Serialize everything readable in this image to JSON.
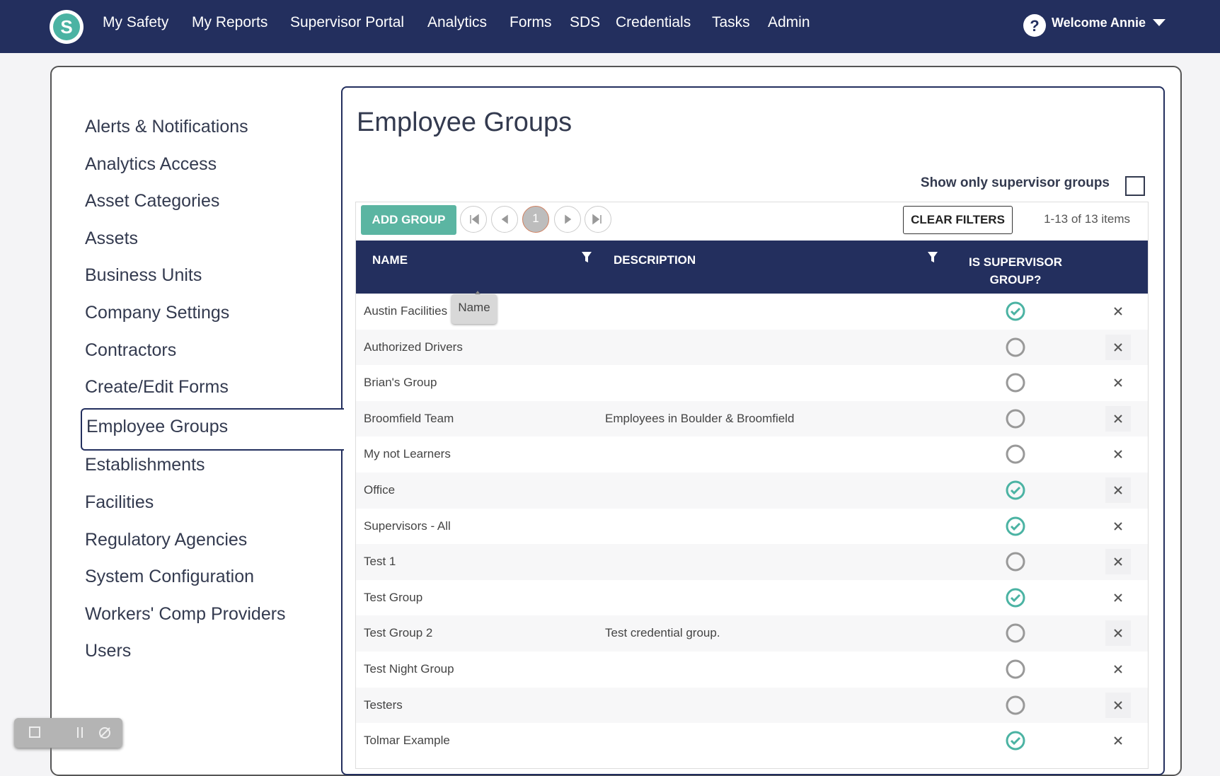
{
  "nav": {
    "logo": "S",
    "items": [
      "My Safety",
      "My Reports",
      "Supervisor Portal",
      "Analytics",
      "Forms",
      "SDS",
      "Credentials",
      "Tasks",
      "Admin"
    ],
    "user": "Welcome Annie"
  },
  "sidebar": {
    "items": [
      {
        "label": "Alerts & Notifications"
      },
      {
        "label": "Analytics Access"
      },
      {
        "label": "Asset Categories"
      },
      {
        "label": "Assets"
      },
      {
        "label": "Business Units"
      },
      {
        "label": "Company Settings"
      },
      {
        "label": "Contractors"
      },
      {
        "label": "Create/Edit Forms"
      },
      {
        "label": "Employee Groups",
        "selected": true
      },
      {
        "label": "Establishments"
      },
      {
        "label": "Facilities"
      },
      {
        "label": "Regulatory Agencies"
      },
      {
        "label": "System Configuration"
      },
      {
        "label": "Workers' Comp Providers"
      },
      {
        "label": "Users"
      }
    ]
  },
  "content": {
    "title": "Employee Groups",
    "filter": {
      "label": "Show only supervisor groups",
      "checked": false
    },
    "toolbar": {
      "add": "ADD GROUP",
      "page": "1",
      "clear": "CLEAR FILTERS",
      "count": "1-13 of 13 items"
    },
    "table": {
      "columns": [
        "NAME",
        "DESCRIPTION",
        "IS SUPERVISOR GROUP?"
      ],
      "tooltip": "Name",
      "rows": [
        {
          "name": "Austin Facilities",
          "description": "",
          "supervisor": true
        },
        {
          "name": "Authorized Drivers",
          "description": "",
          "supervisor": false
        },
        {
          "name": "Brian's Group",
          "description": "",
          "supervisor": false
        },
        {
          "name": "Broomfield Team",
          "description": "Employees in Boulder & Broomfield",
          "supervisor": false
        },
        {
          "name": "My not Learners",
          "description": "",
          "supervisor": false
        },
        {
          "name": "Office",
          "description": "",
          "supervisor": true
        },
        {
          "name": "Supervisors - All",
          "description": "",
          "supervisor": true
        },
        {
          "name": "Test 1",
          "description": "",
          "supervisor": false
        },
        {
          "name": "Test Group",
          "description": "",
          "supervisor": true
        },
        {
          "name": "Test Group 2",
          "description": "Test credential group.",
          "supervisor": false
        },
        {
          "name": "Test Night Group",
          "description": "",
          "supervisor": false
        },
        {
          "name": "Testers",
          "description": "",
          "supervisor": false
        },
        {
          "name": "Tolmar Example",
          "description": "",
          "supervisor": true
        }
      ]
    }
  }
}
